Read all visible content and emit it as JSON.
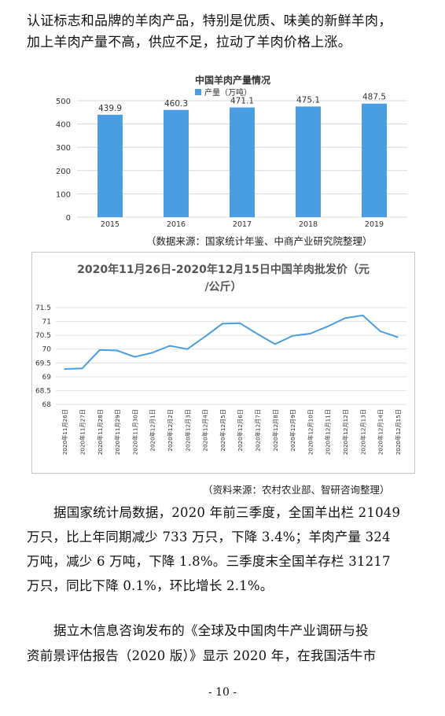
{
  "top_paragraph": {
    "line1": "认证标志和品牌的羊肉产品，特别是优质、味美的新鲜羊肉，",
    "line2": "加上羊肉产量不高，供应不足，拉动了羊肉价格上涨。"
  },
  "chart_data": [
    {
      "type": "bar",
      "title": "中国羊肉产量情况",
      "legend": "产量（万吨）",
      "legend_position": "top",
      "categories": [
        "2015",
        "2016",
        "2017",
        "2018",
        "2019"
      ],
      "values": [
        439.9,
        460.3,
        471.1,
        475.1,
        487.5
      ],
      "value_labels": [
        "439.9",
        "460.3",
        "471.1",
        "475.1",
        "487.5"
      ],
      "ylim": [
        0,
        500
      ],
      "yticks": [
        "0",
        "100",
        "200",
        "300",
        "400",
        "500"
      ],
      "grid": true,
      "color": "#4A9DE0",
      "source": "（数据来源：国家统计年鉴、中商产业研究院整理）"
    },
    {
      "type": "line",
      "title_line1": "2020年11月26日-2020年12月15日中国羊肉批发价（元",
      "title_line2": "/公斤）",
      "categories": [
        "2020年11月26日",
        "2020年11月27日",
        "2020年11月28日",
        "2020年11月29日",
        "2020年11月30日",
        "2020年12月1日",
        "2020年12月2日",
        "2020年12月3日",
        "2020年12月4日",
        "2020年12月5日",
        "2020年12月6日",
        "2020年12月7日",
        "2020年12月8日",
        "2020年12月9日",
        "2020年12月10日",
        "2020年12月11日",
        "2020年12月12日",
        "2020年12月13日",
        "2020年12月14日",
        "2020年12月15日"
      ],
      "values": [
        69.28,
        69.3,
        69.97,
        69.95,
        69.72,
        69.87,
        70.12,
        70.0,
        70.45,
        70.92,
        70.94,
        70.55,
        70.18,
        70.48,
        70.56,
        70.82,
        71.12,
        71.22,
        70.65,
        70.43
      ],
      "ylim": [
        68,
        71.5
      ],
      "yticks": [
        "68",
        "68.5",
        "69",
        "69.5",
        "70",
        "70.5",
        "71",
        "71.5"
      ],
      "grid": true,
      "color": "#4A9DE0",
      "source": "（资料来源：农村农业部、智研咨询整理）"
    }
  ],
  "paragraph2": {
    "line1": "据国家统计局数据，2020 年前三季度，全国羊出栏 21049",
    "line2": "万只，比上年同期减少 733 万只，下降 3.4%；羊肉产量 324",
    "line3": "万吨，减少 6 万吨，下降 1.8%。三季度末全国羊存栏 31217",
    "line4": "万只，同比下降 0.1%，环比增长 2.1%。"
  },
  "paragraph3": {
    "line1": "据立木信息咨询发布的《全球及中国肉牛产业调研与投",
    "line2": "资前景评估报告（2020 版）》显示 2020 年，在我国活牛市"
  },
  "page_number": "- 10 -"
}
